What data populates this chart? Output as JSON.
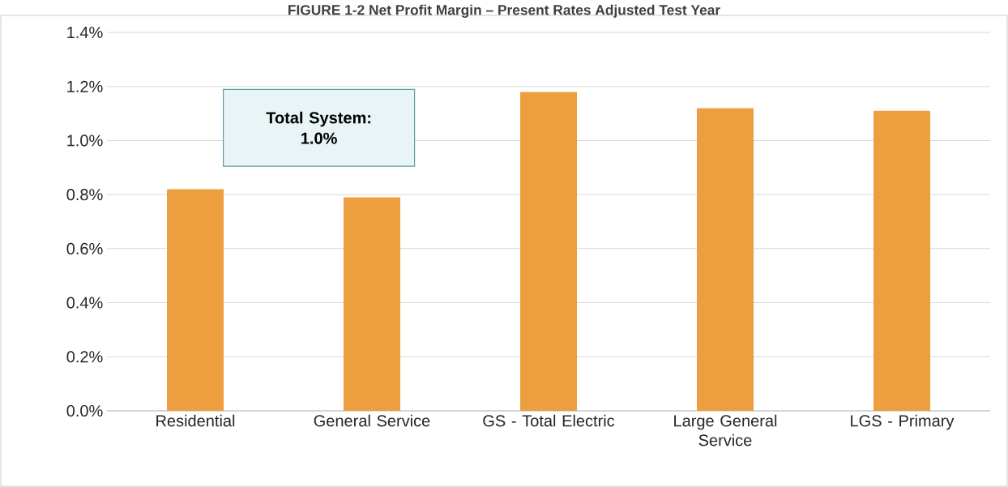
{
  "chart_data": {
    "type": "bar",
    "title": "FIGURE 1-2 Net Profit Margin – Present Rates Adjusted Test Year",
    "categories": [
      "Residential",
      "General Service",
      "GS - Total Electric",
      "Large General Service",
      "LGS - Primary"
    ],
    "values": [
      0.82,
      0.79,
      1.18,
      1.12,
      1.11
    ],
    "color": "#ed9f40",
    "ylim": [
      0,
      1.4
    ],
    "yticks": [
      {
        "value": 0,
        "label": "0.0%"
      },
      {
        "value": 0.2,
        "label": "0.2%"
      },
      {
        "value": 0.4,
        "label": "0.4%"
      },
      {
        "value": 0.6,
        "label": "0.6%"
      },
      {
        "value": 0.8,
        "label": "0.8%"
      },
      {
        "value": 1.0,
        "label": "1.0%"
      },
      {
        "value": 1.2,
        "label": "1.2%"
      },
      {
        "value": 1.4,
        "label": "1.4%"
      }
    ],
    "grid": "y",
    "annotations": [
      "Total System:\n1.0%"
    ]
  }
}
